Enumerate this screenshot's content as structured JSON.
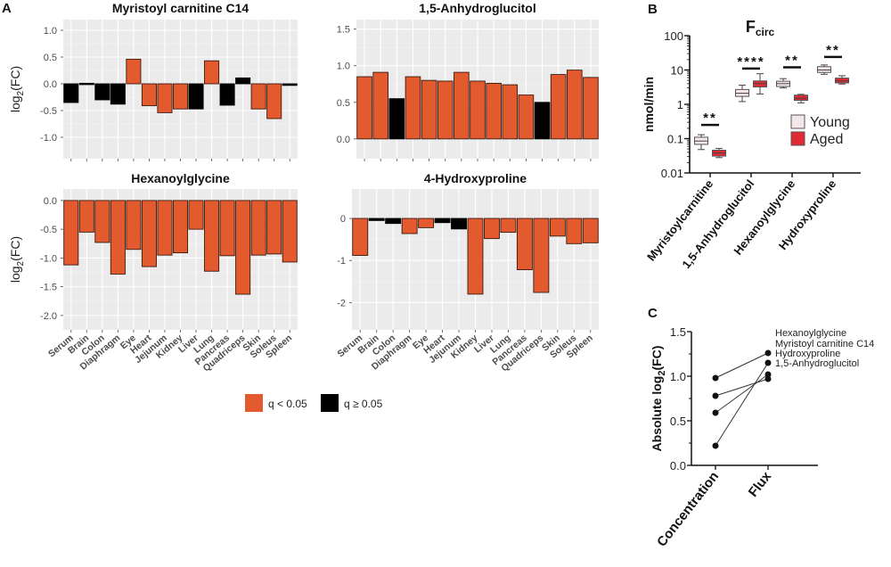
{
  "figure": {
    "panel_letters": [
      "A",
      "B",
      "C"
    ],
    "legend_a": {
      "sig_label": "q < 0.05",
      "nonsig_label": "q ≥ 0.05",
      "sig_color": "#e45a2f",
      "nonsig_color": "#000000"
    }
  },
  "chart_data": [
    {
      "id": "a1",
      "type": "bar",
      "title": "Myristoyl carnitine C14",
      "ylabel": "log2(FC)",
      "xlabel": "",
      "show_x_labels": false,
      "ylim": [
        -1.4,
        1.2
      ],
      "yticks": [
        -1.0,
        -0.5,
        0.0,
        0.5,
        1.0
      ],
      "ytick_labels": [
        "-1.0",
        "-0.5",
        "0.0",
        "0.5",
        "1.0"
      ],
      "grid": true,
      "categories": [
        "Serum",
        "Brain",
        "Colon",
        "Diaphragm",
        "Eye",
        "Heart",
        "Jejunum",
        "Kidney",
        "Liver",
        "Lung",
        "Pancreas",
        "Quadriceps",
        "Skin",
        "Soleus",
        "Spleen"
      ],
      "values": [
        -0.35,
        0.01,
        -0.3,
        -0.38,
        0.46,
        -0.41,
        -0.54,
        -0.47,
        -0.47,
        0.43,
        -0.4,
        0.11,
        -0.47,
        -0.65,
        -0.03
      ],
      "significant": [
        false,
        false,
        false,
        false,
        true,
        true,
        true,
        true,
        false,
        true,
        false,
        false,
        true,
        true,
        false
      ]
    },
    {
      "id": "a2",
      "type": "bar",
      "title": "1,5-Anhydroglucitol",
      "ylabel": "",
      "xlabel": "",
      "show_x_labels": false,
      "ylim": [
        -0.27,
        1.63
      ],
      "yticks": [
        0.0,
        0.5,
        1.0,
        1.5
      ],
      "ytick_labels": [
        "0.0",
        "0.5",
        "1.0",
        "1.5"
      ],
      "grid": true,
      "categories": [
        "Serum",
        "Brain",
        "Colon",
        "Diaphragm",
        "Eye",
        "Heart",
        "Jejunum",
        "Kidney",
        "Liver",
        "Lung",
        "Pancreas",
        "Quadriceps",
        "Skin",
        "Soleus",
        "Spleen"
      ],
      "values": [
        0.85,
        0.91,
        0.55,
        0.85,
        0.8,
        0.79,
        0.91,
        0.79,
        0.76,
        0.74,
        0.6,
        0.5,
        0.88,
        0.94,
        0.84
      ],
      "significant": [
        true,
        true,
        false,
        true,
        true,
        true,
        true,
        true,
        true,
        true,
        true,
        false,
        true,
        true,
        true
      ]
    },
    {
      "id": "a3",
      "type": "bar",
      "title": "Hexanoylglycine",
      "ylabel": "log2(FC)",
      "xlabel": "",
      "show_x_labels": true,
      "ylim": [
        -2.25,
        0.2
      ],
      "yticks": [
        -2.0,
        -1.5,
        -1.0,
        -0.5,
        0.0
      ],
      "ytick_labels": [
        "-2.0",
        "-1.5",
        "-1.0",
        "-0.5",
        "0.0"
      ],
      "grid": true,
      "categories": [
        "Serum",
        "Brain",
        "Colon",
        "Diaphragm",
        "Eye",
        "Heart",
        "Jejunum",
        "Kidney",
        "Liver",
        "Lung",
        "Pancreas",
        "Quadriceps",
        "Skin",
        "Soleus",
        "Spleen"
      ],
      "values": [
        -1.12,
        -0.55,
        -0.73,
        -1.28,
        -0.85,
        -1.15,
        -0.95,
        -0.91,
        -0.5,
        -1.23,
        -0.96,
        -1.63,
        -0.95,
        -0.93,
        -1.07
      ],
      "significant": [
        true,
        true,
        true,
        true,
        true,
        true,
        true,
        true,
        true,
        true,
        true,
        true,
        true,
        true,
        true
      ]
    },
    {
      "id": "a4",
      "type": "bar",
      "title": "4-Hydroxyproline",
      "ylabel": "",
      "xlabel": "",
      "show_x_labels": true,
      "ylim": [
        -2.65,
        0.7
      ],
      "yticks": [
        -2,
        -1,
        0
      ],
      "ytick_labels": [
        "-2",
        "-1",
        "0"
      ],
      "grid": true,
      "categories": [
        "Serum",
        "Brain",
        "Colon",
        "Diaphragm",
        "Eye",
        "Heart",
        "Jejunum",
        "Kidney",
        "Liver",
        "Lung",
        "Pancreas",
        "Quadriceps",
        "Skin",
        "Soleus",
        "Spleen"
      ],
      "values": [
        -0.88,
        -0.05,
        -0.12,
        -0.36,
        -0.22,
        -0.1,
        -0.25,
        -1.8,
        -0.48,
        -0.33,
        -1.22,
        -1.76,
        -0.42,
        -0.6,
        -0.58
      ],
      "significant": [
        true,
        false,
        false,
        true,
        true,
        false,
        false,
        true,
        true,
        true,
        true,
        true,
        true,
        true,
        true
      ]
    },
    {
      "id": "b",
      "type": "box",
      "title": "F",
      "title_subscript": "circ",
      "ylabel": "nmol/min",
      "yscale": "log",
      "ylim": [
        0.01,
        100
      ],
      "yticks": [
        0.01,
        0.1,
        1,
        10,
        100
      ],
      "ytick_labels": [
        "0.01",
        "0.1",
        "1",
        "10",
        "100"
      ],
      "categories": [
        "Myristoylcarnitine",
        "1,5-Anhydroglucitol",
        "Hexanoylglycine",
        "Hydroxyproline"
      ],
      "legend": {
        "position": "right",
        "entries": [
          "Young",
          "Aged"
        ]
      },
      "series": [
        {
          "name": "Young",
          "color": "#f5e6e8",
          "boxes": [
            {
              "min": 0.048,
              "q1": 0.068,
              "median": 0.085,
              "q3": 0.11,
              "max": 0.13
            },
            {
              "min": 1.2,
              "q1": 1.7,
              "median": 2.1,
              "q3": 2.7,
              "max": 3.6
            },
            {
              "min": 3.0,
              "q1": 3.3,
              "median": 4.0,
              "q3": 4.7,
              "max": 5.6
            },
            {
              "min": 7.5,
              "q1": 8.5,
              "median": 10.0,
              "q3": 12.5,
              "max": 14.0
            }
          ]
        },
        {
          "name": "Aged",
          "color": "#e02a35",
          "boxes": [
            {
              "min": 0.028,
              "q1": 0.031,
              "median": 0.038,
              "q3": 0.046,
              "max": 0.052
            },
            {
              "min": 2.0,
              "q1": 3.2,
              "median": 4.0,
              "q3": 4.8,
              "max": 7.8
            },
            {
              "min": 1.1,
              "q1": 1.3,
              "median": 1.5,
              "q3": 1.85,
              "max": 1.95
            },
            {
              "min": 3.9,
              "q1": 4.2,
              "median": 4.8,
              "q3": 5.8,
              "max": 6.8
            }
          ]
        }
      ],
      "annotations": [
        {
          "category": "Myristoylcarnitine",
          "label": "**",
          "bar_y": 0.25
        },
        {
          "category": "1,5-Anhydroglucitol",
          "label": "****",
          "bar_y": 11
        },
        {
          "category": "Hexanoylglycine",
          "label": "**",
          "bar_y": 12
        },
        {
          "category": "Hydroxyproline",
          "label": "**",
          "bar_y": 24
        }
      ]
    },
    {
      "id": "c",
      "type": "line",
      "title": "",
      "ylabel": "Absolute log2(FC)",
      "ylim": [
        0,
        1.5
      ],
      "yticks": [
        0.0,
        0.5,
        1.0,
        1.5
      ],
      "ytick_labels": [
        "0.0",
        "0.5",
        "1.0",
        "1.5"
      ],
      "categories": [
        "Concentration",
        "Flux"
      ],
      "series": [
        {
          "name": "Hexanoylglycine",
          "values": [
            0.98,
            1.26
          ]
        },
        {
          "name": "Myristoyl carnitine C14",
          "values": [
            0.22,
            1.15
          ]
        },
        {
          "name": "Hydroxyproline",
          "values": [
            0.59,
            1.02
          ]
        },
        {
          "name": "1,5-Anhydroglucitol",
          "values": [
            0.78,
            0.97
          ]
        }
      ],
      "label_order": [
        "Hexanoylglycine",
        "Myristoyl carnitine C14",
        "Hydroxyproline",
        "1,5-Anhydroglucitol"
      ]
    }
  ]
}
